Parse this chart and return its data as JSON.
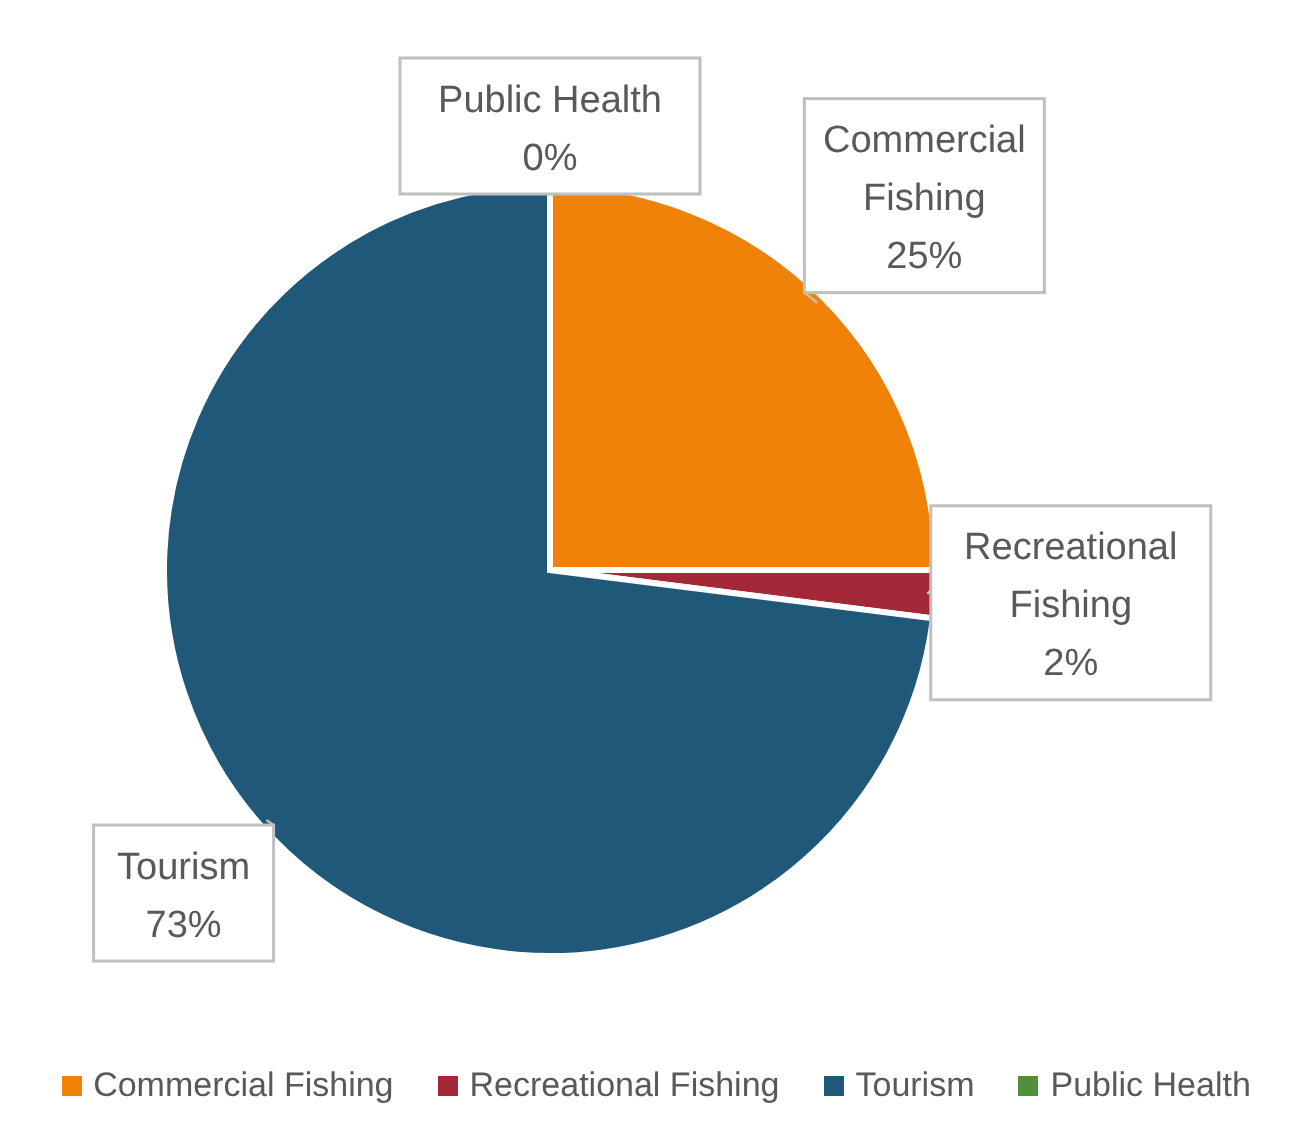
{
  "chart_data": {
    "type": "pie",
    "categories": [
      "Commercial Fishing",
      "Recreational Fishing",
      "Tourism",
      "Public Health"
    ],
    "values": [
      25,
      2,
      73,
      0
    ],
    "colors": [
      "#f0820a",
      "#a32838",
      "#1f5878",
      "#4f8f3c"
    ],
    "value_labels": [
      "25%",
      "2%",
      "73%",
      "0%"
    ],
    "legend": "bottom"
  }
}
